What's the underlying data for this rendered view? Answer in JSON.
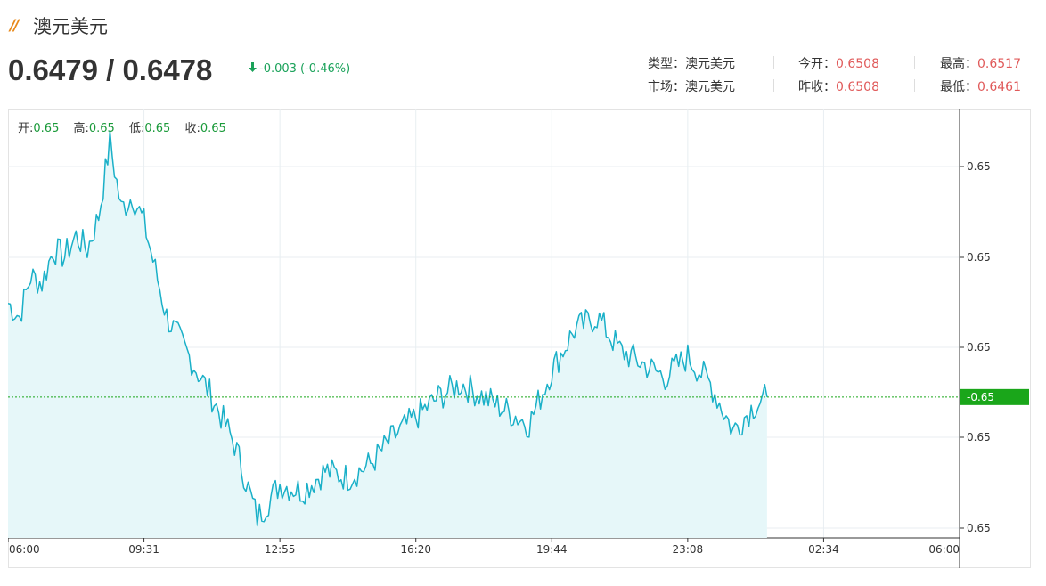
{
  "header": {
    "title": "澳元美元",
    "price": "0.6479 / 0.6478",
    "change": "-0.003 (-0.46%)",
    "info": {
      "type_label": "类型：",
      "type_value": "澳元美元",
      "market_label": "市场：",
      "market_value": "澳元美元",
      "open_label": "今开：",
      "open_value": "0.6508",
      "prevclose_label": "昨收：",
      "prevclose_value": "0.6508",
      "high_label": "最高：",
      "high_value": "0.6517",
      "low_label": "最低：",
      "low_value": "0.6461"
    }
  },
  "ohlc": {
    "open_label": "开:",
    "open_value": "0.65",
    "high_label": "高:",
    "high_value": "0.65",
    "low_label": "低:",
    "low_value": "0.65",
    "close_label": "收:",
    "close_value": "0.65"
  },
  "colors": {
    "line": "#1ab0c8",
    "fill": "#e6f7f9",
    "current_price": "#1aa61a",
    "grid": "#e8eef2"
  },
  "chart_data": {
    "type": "area",
    "x_ticks": [
      "06:00",
      "09:31",
      "12:55",
      "16:20",
      "19:44",
      "23:08",
      "02:34",
      "06:00"
    ],
    "y_ticks": [
      "0.65",
      "0.65",
      "0.65",
      "0.65",
      "0.65"
    ],
    "ylim": [
      0.6457,
      0.6521
    ],
    "current_price": 0.6478,
    "current_price_label": "0.65",
    "grid": true,
    "series": [
      {
        "values": [
          [
            0.0,
            0.6492
          ],
          [
            0.5,
            0.649
          ],
          [
            1.0,
            0.6496
          ],
          [
            1.5,
            0.6495
          ],
          [
            2.0,
            0.65
          ],
          [
            2.5,
            0.6499
          ],
          [
            3.0,
            0.6502
          ],
          [
            3.5,
            0.65
          ],
          [
            4.0,
            0.6505
          ],
          [
            4.5,
            0.6516
          ],
          [
            5.0,
            0.6506
          ],
          [
            5.5,
            0.6508
          ],
          [
            6.0,
            0.6504
          ],
          [
            7.0,
            0.649
          ],
          [
            8.0,
            0.6484
          ],
          [
            9.0,
            0.6478
          ],
          [
            10.0,
            0.6471
          ],
          [
            11.0,
            0.646
          ],
          [
            12.0,
            0.6465
          ],
          [
            13.0,
            0.6464
          ],
          [
            14.0,
            0.6467
          ],
          [
            15.0,
            0.6466
          ],
          [
            16.0,
            0.6468
          ],
          [
            17.0,
            0.6472
          ],
          [
            18.0,
            0.6475
          ],
          [
            19.0,
            0.6478
          ],
          [
            20.0,
            0.648
          ],
          [
            21.0,
            0.6478
          ],
          [
            22.0,
            0.6476
          ],
          [
            23.0,
            0.6474
          ],
          [
            24.0,
            0.6482
          ],
          [
            25.0,
            0.6488
          ],
          [
            26.0,
            0.649
          ],
          [
            27.0,
            0.6485
          ],
          [
            28.0,
            0.6483
          ],
          [
            29.0,
            0.6481
          ],
          [
            30.0,
            0.6484
          ],
          [
            31.0,
            0.648
          ],
          [
            32.0,
            0.6473
          ],
          [
            33.0,
            0.6477
          ],
          [
            33.5,
            0.6478
          ]
        ]
      }
    ]
  }
}
